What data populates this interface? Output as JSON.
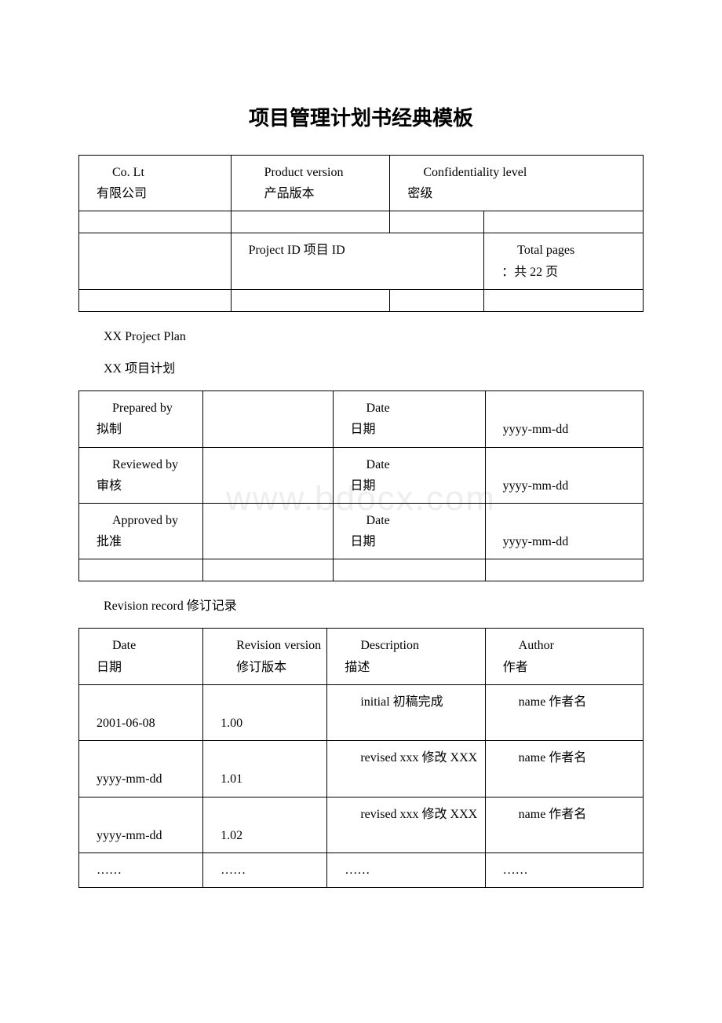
{
  "title": "项目管理计划书经典模板",
  "watermark": "www.bdocx.com",
  "table1": {
    "r1c1_en": "Co. Lt",
    "r1c1_cn": "有限公司",
    "r1c2_en": "Product version",
    "r1c2_cn": "产品版本",
    "r1c3_en": "Confidentiality level",
    "r1c3_cn": "密级",
    "r3c2": "Project ID 项目 ID",
    "r3c4_en": "Total pages",
    "r3c4_cn": "：共 22 页"
  },
  "plan_en": "XX Project Plan",
  "plan_cn": "XX 项目计划",
  "table2": {
    "r1c1_en": "Prepared by",
    "r1c1_cn": "拟制",
    "r1c3_en": "Date",
    "r1c3_cn": "日期",
    "r1c4": "yyyy-mm-dd",
    "r2c1_en": "Reviewed by",
    "r2c1_cn": "审核",
    "r2c3_en": "Date",
    "r2c3_cn": "日期",
    "r2c4": "yyyy-mm-dd",
    "r3c1_en": "Approved by",
    "r3c1_cn": "批准",
    "r3c3_en": "Date",
    "r3c3_cn": "日期",
    "r3c4": "yyyy-mm-dd"
  },
  "revision_label": "Revision record 修订记录",
  "table3": {
    "h1_en": "Date",
    "h1_cn": "日期",
    "h2_en": "Revision version",
    "h2_cn": "修订版本",
    "h3_en": "Description",
    "h3_cn": "描述",
    "h4_en": "Author",
    "h4_cn": "作者",
    "r1c1": "2001-06-08",
    "r1c2": "1.00",
    "r1c3": "initial 初稿完成",
    "r1c4": "name 作者名",
    "r2c1": "yyyy-mm-dd",
    "r2c2": "1.01",
    "r2c3": "revised xxx 修改 XXX",
    "r2c4": "name 作者名",
    "r3c1": "yyyy-mm-dd",
    "r3c2": "1.02",
    "r3c3": "revised xxx 修改 XXX",
    "r3c4": "name 作者名",
    "r4c1": "……",
    "r4c2": "……",
    "r4c3": "……",
    "r4c4": "……"
  }
}
